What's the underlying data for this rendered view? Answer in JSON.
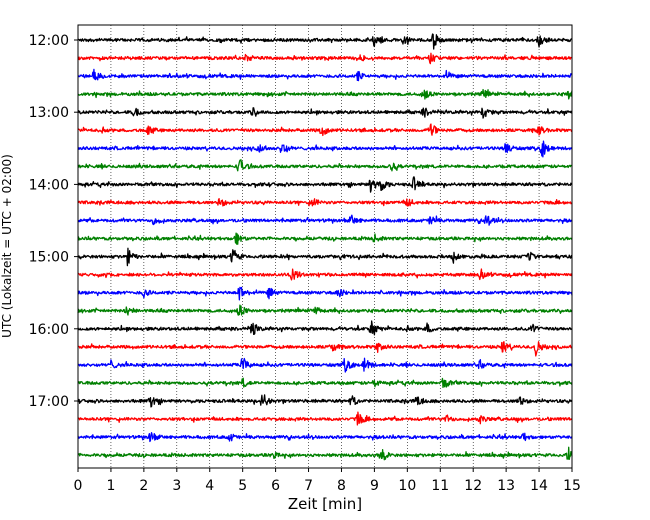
{
  "chart_data": {
    "type": "line",
    "title": "",
    "xlabel": "Zeit  [min]",
    "ylabel": "UTC (Lokalzeit = UTC + 02:00)",
    "xlim": [
      0,
      15
    ],
    "x_ticks": [
      0,
      1,
      2,
      3,
      4,
      5,
      6,
      7,
      8,
      9,
      10,
      11,
      12,
      13,
      14,
      15
    ],
    "grid": "vertical dotted at each minute",
    "row_interval_minutes": 15,
    "y_tick_labels": [
      "12:00",
      "13:00",
      "14:00",
      "15:00",
      "16:00",
      "17:00"
    ],
    "y_tick_row_indices": [
      0,
      4,
      8,
      12,
      16,
      20
    ],
    "color_cycle": [
      "#000000",
      "#ff0000",
      "#0000ff",
      "#008000"
    ],
    "series": [
      {
        "start": "12:00",
        "color": "#000000",
        "events": [
          [
            9.0,
            0.7
          ],
          [
            9.9,
            0.6
          ],
          [
            10.8,
            1.0
          ],
          [
            14.0,
            0.7
          ]
        ]
      },
      {
        "start": "12:15",
        "color": "#ff0000",
        "events": [
          [
            5.1,
            0.5
          ],
          [
            8.5,
            0.5
          ],
          [
            10.7,
            0.6
          ]
        ]
      },
      {
        "start": "12:30",
        "color": "#0000ff",
        "events": [
          [
            0.5,
            0.8
          ],
          [
            8.5,
            0.5
          ],
          [
            11.2,
            0.5
          ]
        ]
      },
      {
        "start": "12:45",
        "color": "#008000",
        "events": [
          [
            10.5,
            0.7
          ],
          [
            12.3,
            0.5
          ],
          [
            14.9,
            0.6
          ]
        ]
      },
      {
        "start": "13:00",
        "color": "#000000",
        "events": [
          [
            1.7,
            0.6
          ],
          [
            5.3,
            0.5
          ],
          [
            10.5,
            0.6
          ],
          [
            12.3,
            0.8
          ]
        ]
      },
      {
        "start": "13:15",
        "color": "#ff0000",
        "events": [
          [
            2.1,
            0.6
          ],
          [
            7.4,
            0.8
          ],
          [
            10.7,
            1.0
          ],
          [
            14.0,
            0.6
          ]
        ]
      },
      {
        "start": "13:30",
        "color": "#0000ff",
        "events": [
          [
            5.5,
            0.6
          ],
          [
            6.2,
            0.9
          ],
          [
            13.0,
            0.8
          ],
          [
            14.1,
            1.0
          ]
        ]
      },
      {
        "start": "13:45",
        "color": "#008000",
        "events": [
          [
            4.9,
            1.0
          ],
          [
            9.5,
            0.6
          ]
        ]
      },
      {
        "start": "14:00",
        "color": "#000000",
        "events": [
          [
            8.9,
            1.0
          ],
          [
            9.2,
            0.8
          ],
          [
            10.2,
            0.8
          ]
        ]
      },
      {
        "start": "14:15",
        "color": "#ff0000",
        "events": [
          [
            4.3,
            0.7
          ],
          [
            7.1,
            0.6
          ],
          [
            10.0,
            0.5
          ]
        ]
      },
      {
        "start": "14:30",
        "color": "#0000ff",
        "events": [
          [
            2.3,
            0.5
          ],
          [
            8.3,
            0.6
          ],
          [
            10.7,
            0.6
          ],
          [
            12.4,
            0.8
          ]
        ]
      },
      {
        "start": "14:45",
        "color": "#008000",
        "events": [
          [
            4.8,
            0.8
          ],
          [
            9.0,
            0.4
          ]
        ]
      },
      {
        "start": "15:00",
        "color": "#000000",
        "events": [
          [
            1.5,
            1.0
          ],
          [
            4.7,
            1.0
          ],
          [
            11.4,
            0.6
          ],
          [
            13.7,
            0.5
          ]
        ]
      },
      {
        "start": "15:15",
        "color": "#ff0000",
        "events": [
          [
            6.5,
            0.8
          ],
          [
            12.2,
            0.6
          ]
        ]
      },
      {
        "start": "15:30",
        "color": "#0000ff",
        "events": [
          [
            2.0,
            0.5
          ],
          [
            4.9,
            1.0
          ],
          [
            5.8,
            0.6
          ],
          [
            7.9,
            0.5
          ]
        ]
      },
      {
        "start": "15:45",
        "color": "#008000",
        "events": [
          [
            1.5,
            0.6
          ],
          [
            4.9,
            0.8
          ],
          [
            7.2,
            0.5
          ]
        ]
      },
      {
        "start": "16:00",
        "color": "#000000",
        "events": [
          [
            5.3,
            0.8
          ],
          [
            8.9,
            0.9
          ],
          [
            10.6,
            0.6
          ],
          [
            13.8,
            0.5
          ]
        ]
      },
      {
        "start": "16:15",
        "color": "#ff0000",
        "events": [
          [
            7.7,
            0.6
          ],
          [
            9.1,
            0.7
          ],
          [
            12.9,
            0.9
          ],
          [
            13.9,
            1.0
          ]
        ]
      },
      {
        "start": "16:30",
        "color": "#0000ff",
        "events": [
          [
            1.0,
            0.5
          ],
          [
            5.0,
            1.0
          ],
          [
            8.1,
            0.9
          ],
          [
            8.7,
            0.8
          ],
          [
            12.2,
            0.5
          ]
        ]
      },
      {
        "start": "16:45",
        "color": "#008000",
        "events": [
          [
            5.0,
            0.5
          ],
          [
            9.0,
            0.5
          ],
          [
            11.1,
            0.7
          ]
        ]
      },
      {
        "start": "17:00",
        "color": "#000000",
        "events": [
          [
            2.2,
            0.7
          ],
          [
            5.6,
            1.0
          ],
          [
            8.3,
            0.6
          ],
          [
            10.3,
            0.6
          ],
          [
            13.4,
            0.8
          ]
        ]
      },
      {
        "start": "17:15",
        "color": "#ff0000",
        "events": [
          [
            8.5,
            0.8
          ],
          [
            11.2,
            0.5
          ],
          [
            12.2,
            0.5
          ]
        ]
      },
      {
        "start": "17:30",
        "color": "#0000ff",
        "events": [
          [
            2.2,
            0.6
          ],
          [
            4.6,
            0.5
          ],
          [
            13.5,
            0.5
          ]
        ]
      },
      {
        "start": "17:45",
        "color": "#008000",
        "events": [
          [
            5.9,
            0.5
          ],
          [
            9.2,
            1.0
          ],
          [
            14.9,
            0.8
          ]
        ]
      }
    ]
  }
}
